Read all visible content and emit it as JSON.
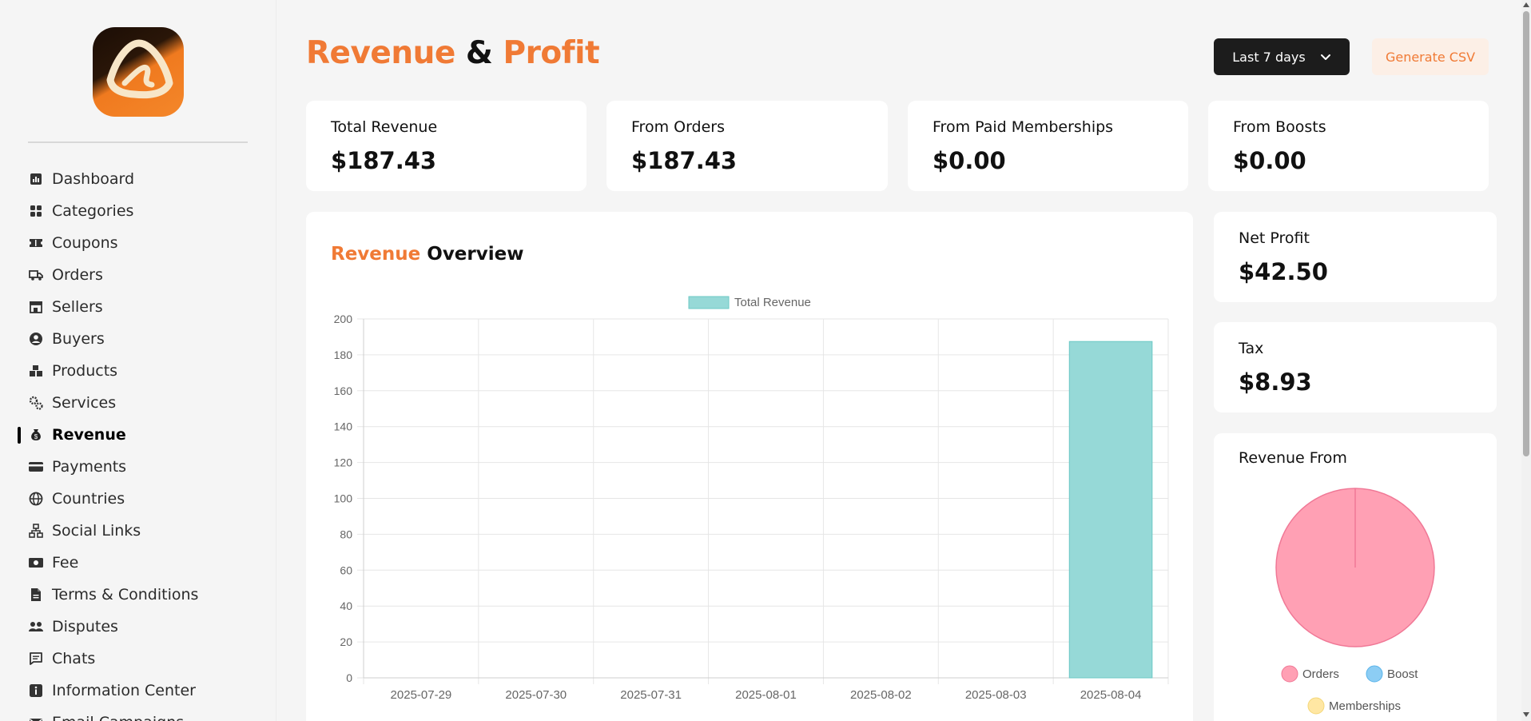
{
  "sidebar": {
    "items": [
      {
        "label": "Dashboard",
        "icon": "dashboard-icon"
      },
      {
        "label": "Categories",
        "icon": "grid-icon"
      },
      {
        "label": "Coupons",
        "icon": "ticket-icon"
      },
      {
        "label": "Orders",
        "icon": "truck-icon"
      },
      {
        "label": "Sellers",
        "icon": "store-icon"
      },
      {
        "label": "Buyers",
        "icon": "user-circle-icon"
      },
      {
        "label": "Products",
        "icon": "boxes-icon"
      },
      {
        "label": "Services",
        "icon": "gears-icon"
      },
      {
        "label": "Revenue",
        "icon": "money-bag-icon",
        "active": true
      },
      {
        "label": "Payments",
        "icon": "credit-card-icon"
      },
      {
        "label": "Countries",
        "icon": "globe-icon"
      },
      {
        "label": "Social Links",
        "icon": "network-icon"
      },
      {
        "label": "Fee",
        "icon": "cash-icon"
      },
      {
        "label": "Terms & Conditions",
        "icon": "document-icon"
      },
      {
        "label": "Disputes",
        "icon": "users-icon"
      },
      {
        "label": "Chats",
        "icon": "message-icon"
      },
      {
        "label": "Information Center",
        "icon": "info-icon"
      },
      {
        "label": "Email Campaigns",
        "icon": "mail-icon"
      }
    ]
  },
  "header": {
    "title_part1": "Revenue",
    "title_amp": "&",
    "title_part2": "Profit",
    "range_label": "Last 7 days",
    "csv_label": "Generate CSV"
  },
  "stats": [
    {
      "label": "Total Revenue",
      "value": "$187.43"
    },
    {
      "label": "From Orders",
      "value": "$187.43"
    },
    {
      "label": "From Paid Memberships",
      "value": "$0.00"
    },
    {
      "label": "From Boosts",
      "value": "$0.00"
    }
  ],
  "side_stats": {
    "net_profit": {
      "label": "Net Profit",
      "value": "$42.50"
    },
    "tax": {
      "label": "Tax",
      "value": "$8.93"
    }
  },
  "overview": {
    "title_part1": "Revenue",
    "title_part2": "Overview"
  },
  "revenue_from": {
    "title": "Revenue From"
  },
  "colors": {
    "accent": "#f07a35",
    "bar": "#96d9d7",
    "bar_border": "#6cc9c6",
    "pie_orders": "#ffa0b4",
    "pie_boost": "#8ccdf4",
    "pie_memberships": "#ffe7a3"
  },
  "chart_data": [
    {
      "type": "bar",
      "categories": [
        "2025-07-29",
        "2025-07-30",
        "2025-07-31",
        "2025-08-01",
        "2025-08-02",
        "2025-08-03",
        "2025-08-04"
      ],
      "series": [
        {
          "name": "Total Revenue",
          "values": [
            0,
            0,
            0,
            0,
            0,
            0,
            187.43
          ]
        }
      ],
      "ylim": [
        0,
        200
      ],
      "yticks": [
        0,
        20,
        40,
        60,
        80,
        100,
        120,
        140,
        160,
        180,
        200
      ],
      "grid": true,
      "legend": "top-center"
    },
    {
      "type": "pie",
      "labels": [
        "Orders",
        "Boost",
        "Memberships"
      ],
      "values": [
        187.43,
        0,
        0
      ],
      "legend": "bottom"
    }
  ]
}
